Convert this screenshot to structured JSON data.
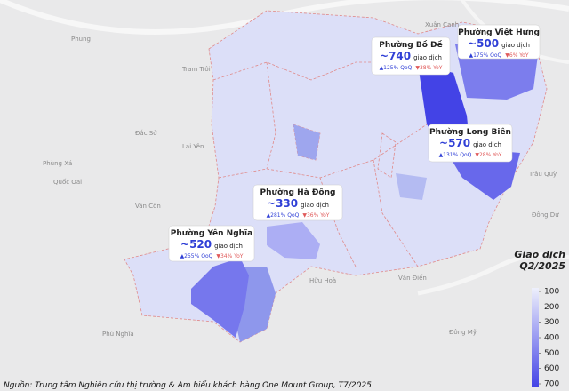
{
  "map": {
    "place_labels": [
      "Phung",
      "Tram Trôi",
      "Đắc Sở",
      "Lai Yên",
      "Phùng Xá",
      "Quốc Oai",
      "Vân Côn",
      "Phú Nghĩa",
      "Hữu Hoà",
      "Văn Điển",
      "Trâu Quỳ",
      "Đông Dư",
      "Xuân Canh",
      "Đông Mỹ"
    ],
    "callouts": [
      {
        "name": "Phường Bồ Đề",
        "value": 740,
        "value_label": "~740",
        "unit": "giao dịch",
        "qoq": "▲125% QoQ",
        "yoy": "▼38% YoY"
      },
      {
        "name": "Phường Việt Hưng",
        "value": 500,
        "value_label": "~500",
        "unit": "giao dịch",
        "qoq": "▲175% QoQ",
        "yoy": "▼6% YoY"
      },
      {
        "name": "Phường Long Biên",
        "value": 570,
        "value_label": "~570",
        "unit": "giao dịch",
        "qoq": "▲131% QoQ",
        "yoy": "▼28% YoY"
      },
      {
        "name": "Phường Hà Đông",
        "value": 330,
        "value_label": "~330",
        "unit": "giao dịch",
        "qoq": "▲281% QoQ",
        "yoy": "▼36% YoY"
      },
      {
        "name": "Phường Yên Nghĩa",
        "value": 520,
        "value_label": "~520",
        "unit": "giao dịch",
        "qoq": "▲255% QoQ",
        "yoy": "▼34% YoY"
      }
    ],
    "legend": {
      "title": [
        "Giao dịch",
        "Q2/2025"
      ],
      "lim": [
        100,
        700
      ],
      "ticks": [
        100,
        200,
        300,
        400,
        500,
        600,
        700
      ],
      "colors": [
        "#eef0fc",
        "#4343e6"
      ]
    },
    "source": "Nguồn: Trung tâm Nghiên cứu thị trường & Am hiểu khách hàng One Mount Group, T7/2025"
  }
}
